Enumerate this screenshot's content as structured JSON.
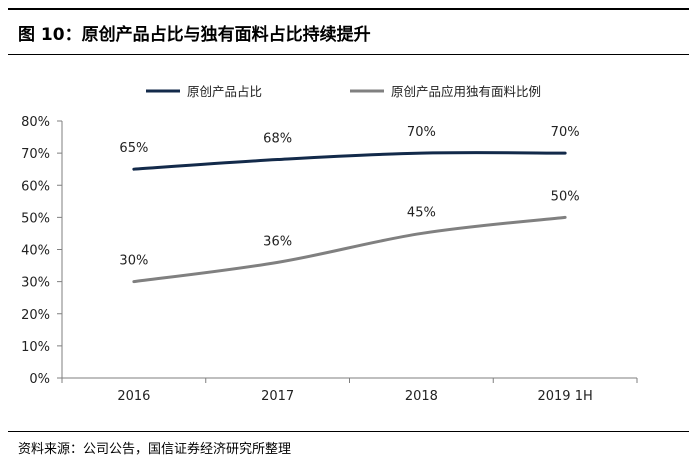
{
  "figure": {
    "title": "图 10：原创产品占比与独有面料占比持续提升",
    "source": "资料来源：公司公告，国信证券经济研究所整理"
  },
  "chart_data": {
    "type": "line",
    "categories": [
      "2016",
      "2017",
      "2018",
      "2019 1H"
    ],
    "series": [
      {
        "name": "原创产品占比",
        "values": [
          65,
          68,
          70,
          70
        ],
        "labels": [
          "65%",
          "68%",
          "70%",
          "70%"
        ],
        "color": "#132a4a"
      },
      {
        "name": "原创产品应用独有面料比例",
        "values": [
          30,
          36,
          45,
          50
        ],
        "labels": [
          "30%",
          "36%",
          "45%",
          "50%"
        ],
        "color": "#808080"
      }
    ],
    "ylim": [
      0,
      80
    ],
    "yticks": [
      0,
      10,
      20,
      30,
      40,
      50,
      60,
      70,
      80
    ],
    "ytick_labels": [
      "0%",
      "10%",
      "20%",
      "30%",
      "40%",
      "50%",
      "60%",
      "70%",
      "80%"
    ],
    "xlabel": "",
    "ylabel": "",
    "grid": false,
    "legend": "top"
  }
}
